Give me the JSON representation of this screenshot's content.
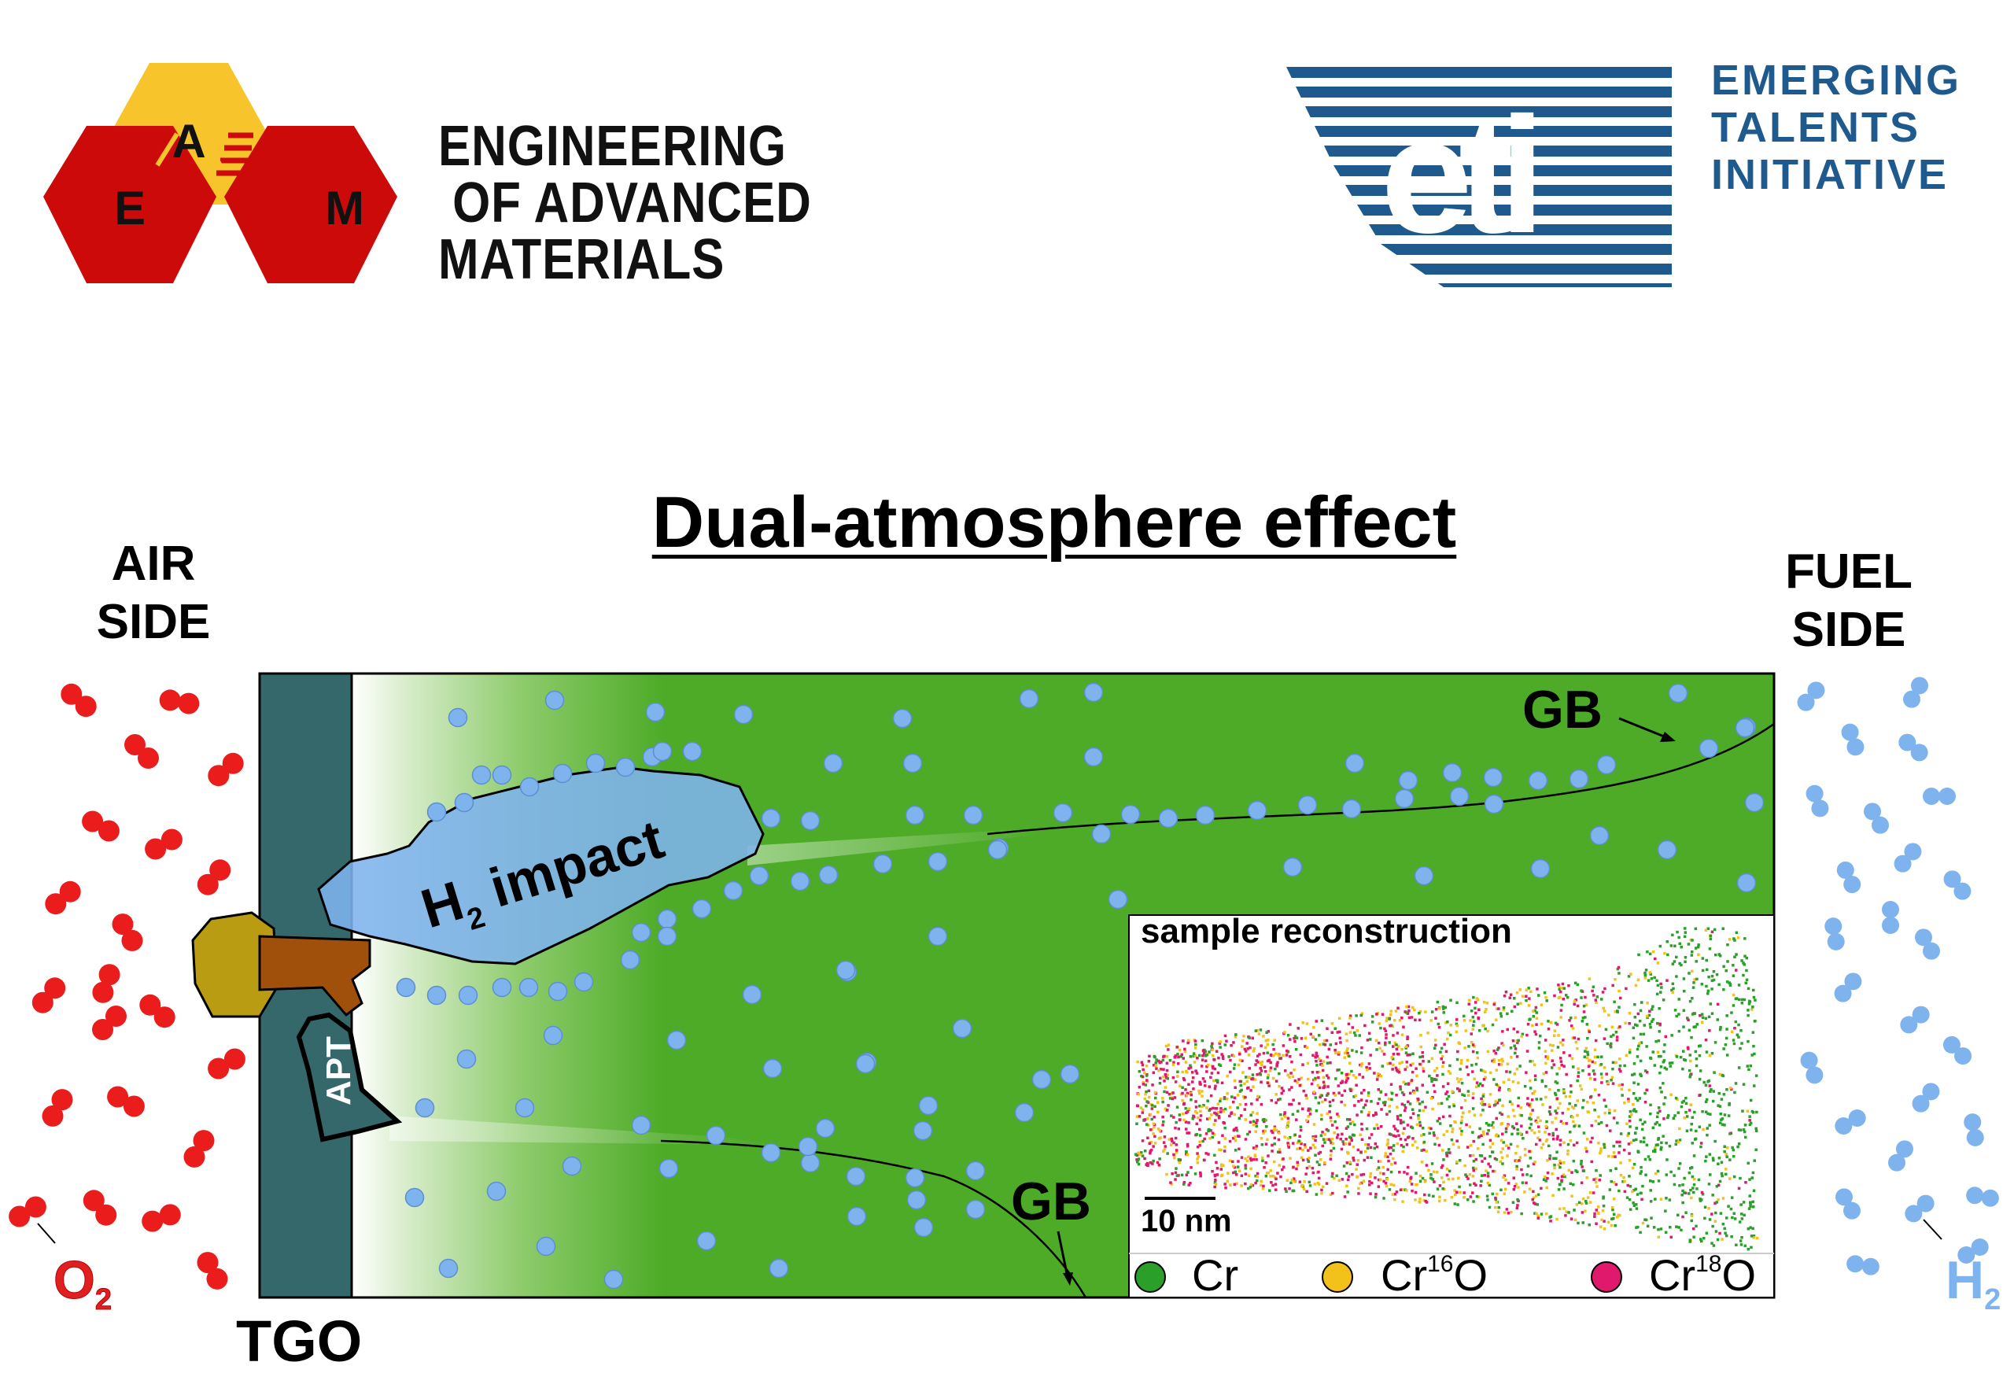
{
  "logos": {
    "eam": {
      "hex_letters": [
        "E",
        "A",
        "M"
      ],
      "lines": [
        "ENGINEERING",
        " OF ADVANCED",
        "MATERIALS"
      ],
      "colors": {
        "red": "#cc0a0a",
        "yellow": "#f7c42b",
        "stripe": "#cc0a0a"
      }
    },
    "eti": {
      "mark": "eti",
      "lines": [
        "EMERGING",
        "TALENTS",
        "INITIATIVE"
      ],
      "colors": {
        "blue": "#1f5a8e"
      }
    }
  },
  "diagram": {
    "title": "Dual-atmosphere effect",
    "air_side": [
      "AIR",
      "SIDE"
    ],
    "fuel_side": [
      "FUEL",
      "SIDE"
    ],
    "tgo_label": "TGO",
    "apt_label": "APT",
    "h2_impact": {
      "main": "H",
      "sub": "2",
      "rest": " impact"
    },
    "gb_labels": [
      "GB",
      "GB"
    ],
    "o2": {
      "main": "O",
      "sub": "2"
    },
    "h2": {
      "main": "H",
      "sub": "2"
    },
    "colors": {
      "metal_green": "#4dab27",
      "tgo_teal": "#35686a",
      "hydrogen_blue": "#7eb3ee",
      "oxygen_red": "#ea1c1c",
      "oxide_brown": "#a0500a",
      "oxide_olive": "#b99c12"
    }
  },
  "inset": {
    "title": "sample reconstruction",
    "scale_bar": "10 nm",
    "legend": [
      {
        "label": "Cr",
        "sup": "",
        "tail": "",
        "color": "#2aa02a"
      },
      {
        "label": "Cr",
        "sup": "16",
        "tail": "O",
        "color": "#f2c21b"
      },
      {
        "label": "Cr",
        "sup": "18",
        "tail": "O",
        "color": "#e0196c"
      }
    ]
  }
}
